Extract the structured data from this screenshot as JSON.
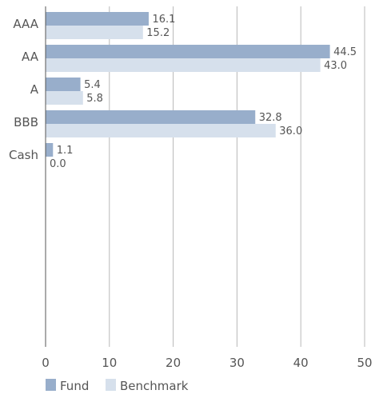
{
  "chart_data": {
    "type": "bar",
    "orientation": "horizontal",
    "categories": [
      "AAA",
      "AA",
      "A",
      "BBB",
      "Cash"
    ],
    "series": [
      {
        "name": "Fund",
        "values": [
          16.1,
          44.5,
          5.4,
          32.8,
          1.1
        ],
        "labels": [
          "16.1",
          "44.5",
          "5.4",
          "32.8",
          "1.1"
        ]
      },
      {
        "name": "Benchmark",
        "values": [
          15.2,
          43.0,
          5.8,
          36.0,
          0.0
        ],
        "labels": [
          "15.2",
          "43.0",
          "5.8",
          "36.0",
          "0.0"
        ]
      }
    ],
    "xlim": [
      0,
      50
    ],
    "xticks": [
      "0",
      "10",
      "20",
      "30",
      "40",
      "50"
    ],
    "grid": true,
    "legend_position": "bottom-left",
    "title": "",
    "xlabel": "",
    "ylabel": ""
  },
  "colors": {
    "fund": "#98aecb",
    "benchmark": "#d6e0ec",
    "grid": "#b8b8b8",
    "axis": "#555555",
    "text": "#555555"
  }
}
